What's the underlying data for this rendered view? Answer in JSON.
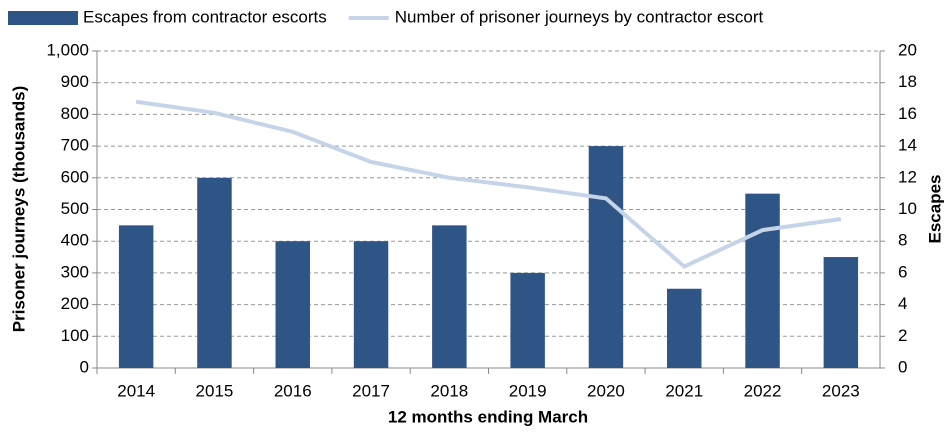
{
  "chart_data": {
    "type": "bar-line",
    "categories": [
      "2014",
      "2015",
      "2016",
      "2017",
      "2018",
      "2019",
      "2020",
      "2021",
      "2022",
      "2023"
    ],
    "series": [
      {
        "name": "Escapes from contractor escorts",
        "color": "#2f5486",
        "axis": "y2",
        "kind": "bar",
        "values": [
          9,
          12,
          8,
          8,
          9,
          6,
          14,
          5,
          11,
          7
        ]
      },
      {
        "name": "Number of prisoner journeys by contractor escort",
        "color": "#c5d4e8",
        "kind": "line",
        "values": [
          840,
          805,
          745,
          650,
          600,
          570,
          535,
          320,
          435,
          470
        ]
      }
    ],
    "xlabel": "12 months ending March",
    "ylabel": "Prisoner journeys (thousands)",
    "y2label": "Escapes",
    "ylim": [
      0,
      1000
    ],
    "yticks": [
      0,
      100,
      200,
      300,
      400,
      500,
      600,
      700,
      800,
      900,
      {
        "value": 1000,
        "label": "1,000"
      }
    ],
    "y2lim": [
      0,
      20
    ],
    "y2ticks": [
      0,
      2,
      4,
      6,
      8,
      10,
      12,
      14,
      16,
      18,
      20
    ],
    "grid": true
  }
}
